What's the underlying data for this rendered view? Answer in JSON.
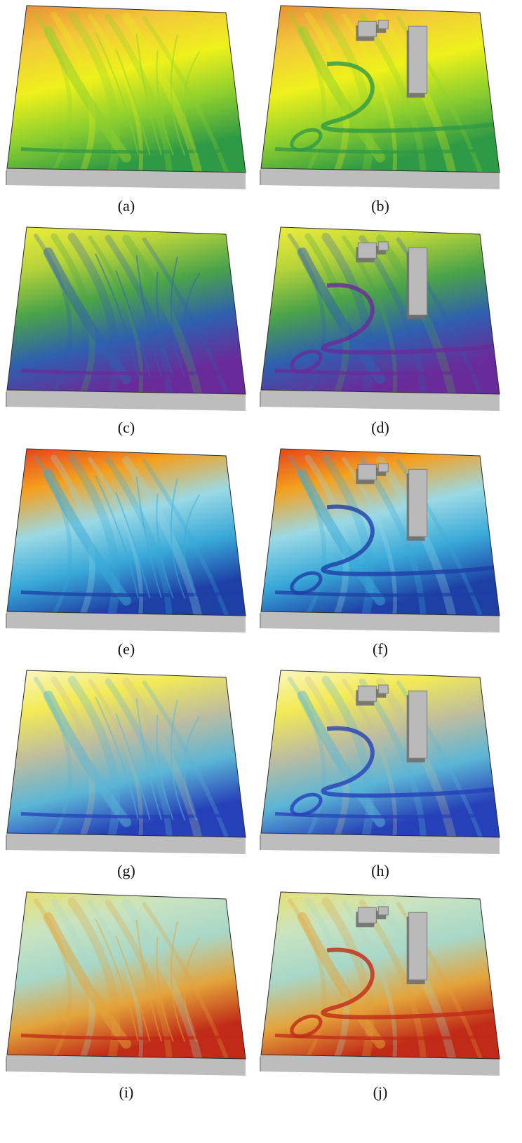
{
  "figure": {
    "panels": [
      {
        "id": "a",
        "label": "(a)",
        "scheme": "elevation",
        "buildings": false
      },
      {
        "id": "b",
        "label": "(b)",
        "scheme": "elevation",
        "buildings": true
      },
      {
        "id": "c",
        "label": "(c)",
        "scheme": "slope",
        "buildings": false
      },
      {
        "id": "d",
        "label": "(d)",
        "scheme": "slope",
        "buildings": true
      },
      {
        "id": "e",
        "label": "(e)",
        "scheme": "curvature",
        "buildings": false
      },
      {
        "id": "f",
        "label": "(f)",
        "scheme": "curvature",
        "buildings": true
      },
      {
        "id": "g",
        "label": "(g)",
        "scheme": "flow",
        "buildings": false
      },
      {
        "id": "h",
        "label": "(h)",
        "scheme": "flow",
        "buildings": true
      },
      {
        "id": "i",
        "label": "(i)",
        "scheme": "erosion",
        "buildings": false
      },
      {
        "id": "j",
        "label": "(j)",
        "scheme": "erosion",
        "buildings": true
      }
    ],
    "colors": {
      "base": "#bdbdbd",
      "base_dark": "#9a9a9a",
      "elevation": [
        "#e88b35",
        "#f3c93a",
        "#eef11b",
        "#8dcf2e",
        "#2f9a45"
      ],
      "slope": [
        "#f2ef3a",
        "#b8d43a",
        "#4aa34a",
        "#2f5fb0",
        "#6a2b9a"
      ],
      "curvature": [
        "#e63b1c",
        "#f4a01e",
        "#9ad9e6",
        "#39a9d8",
        "#1e3fa6"
      ],
      "flow": [
        "#fbf7c8",
        "#f3ea55",
        "#bdbda0",
        "#5bb5d6",
        "#2640b8"
      ],
      "erosion": [
        "#e9e06a",
        "#c9e3c0",
        "#a8d7c8",
        "#e4a33a",
        "#c02a17"
      ]
    }
  }
}
